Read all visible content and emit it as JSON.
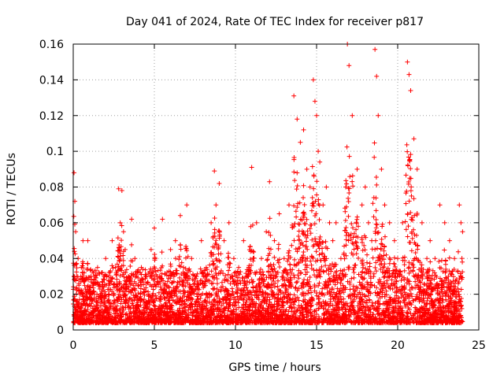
{
  "chart_data": {
    "type": "scatter",
    "title": "Day 041 of 2024, Rate Of TEC Index for receiver p817",
    "xlabel": "GPS time / hours",
    "ylabel": "ROTI / TECUs",
    "xlim": [
      0,
      25
    ],
    "ylim": [
      0,
      0.16
    ],
    "x_ticks": [
      0,
      5,
      10,
      15,
      20,
      25
    ],
    "x_tick_labels": [
      "0",
      "5",
      "10",
      "15",
      "20",
      "25"
    ],
    "y_ticks": [
      0,
      0.02,
      0.04,
      0.06,
      0.08,
      0.1,
      0.12,
      0.14,
      0.16
    ],
    "y_tick_labels": [
      "0",
      "0.02",
      "0.04",
      "0.06",
      "0.08",
      "0.1",
      "0.12",
      "0.14",
      "0.16"
    ],
    "grid": true,
    "marker": "plus",
    "color": "#ff0000",
    "series": [
      {
        "name": "ROTI",
        "x": [
          0.05,
          0.1,
          0.15,
          0.2,
          0.3,
          0.35,
          0.4,
          0.5,
          0.6,
          0.7,
          0.8,
          0.9,
          1.0,
          1.1,
          1.2,
          1.3,
          1.5,
          1.7,
          1.9,
          2.0,
          2.2,
          2.4,
          2.6,
          2.8,
          2.9,
          3.0,
          3.1,
          3.2,
          3.4,
          3.6,
          3.8,
          4.0,
          4.2,
          4.5,
          4.8,
          5.0,
          5.2,
          5.5,
          5.8,
          6.0,
          6.3,
          6.6,
          6.8,
          7.0,
          7.3,
          7.6,
          7.9,
          8.2,
          8.5,
          8.7,
          8.8,
          9.0,
          9.3,
          9.6,
          9.9,
          10.2,
          10.5,
          10.8,
          11.0,
          11.3,
          11.6,
          11.9,
          12.1,
          12.4,
          12.7,
          13.0,
          13.3,
          13.6,
          13.8,
          14.0,
          14.2,
          14.4,
          14.6,
          14.8,
          14.9,
          15.0,
          15.1,
          15.2,
          15.4,
          15.6,
          15.8,
          16.0,
          16.2,
          16.5,
          16.8,
          16.9,
          17.0,
          17.2,
          17.5,
          17.8,
          18.0,
          18.2,
          18.4,
          18.6,
          18.7,
          18.8,
          19.0,
          19.2,
          19.5,
          19.8,
          20.0,
          20.3,
          20.6,
          20.7,
          20.8,
          21.0,
          21.2,
          21.5,
          21.8,
          22.0,
          22.3,
          22.6,
          22.9,
          23.2,
          23.5,
          23.8,
          23.9,
          24.0
        ],
        "y": [
          0.088,
          0.072,
          0.055,
          0.03,
          0.04,
          0.025,
          0.02,
          0.035,
          0.05,
          0.015,
          0.02,
          0.05,
          0.018,
          0.03,
          0.012,
          0.02,
          0.035,
          0.015,
          0.03,
          0.04,
          0.02,
          0.05,
          0.035,
          0.079,
          0.06,
          0.078,
          0.055,
          0.045,
          0.03,
          0.062,
          0.04,
          0.025,
          0.035,
          0.03,
          0.045,
          0.057,
          0.03,
          0.062,
          0.02,
          0.045,
          0.05,
          0.064,
          0.035,
          0.07,
          0.04,
          0.03,
          0.05,
          0.035,
          0.06,
          0.089,
          0.07,
          0.082,
          0.05,
          0.06,
          0.04,
          0.035,
          0.05,
          0.03,
          0.091,
          0.06,
          0.04,
          0.055,
          0.083,
          0.05,
          0.065,
          0.04,
          0.07,
          0.131,
          0.118,
          0.105,
          0.112,
          0.09,
          0.08,
          0.14,
          0.128,
          0.12,
          0.1,
          0.094,
          0.07,
          0.08,
          0.06,
          0.05,
          0.06,
          0.04,
          0.08,
          0.16,
          0.148,
          0.12,
          0.09,
          0.07,
          0.08,
          0.06,
          0.05,
          0.157,
          0.142,
          0.12,
          0.09,
          0.07,
          0.06,
          0.05,
          0.04,
          0.06,
          0.15,
          0.143,
          0.134,
          0.107,
          0.09,
          0.06,
          0.04,
          0.05,
          0.04,
          0.07,
          0.06,
          0.05,
          0.04,
          0.07,
          0.06,
          0.055
        ]
      }
    ]
  }
}
